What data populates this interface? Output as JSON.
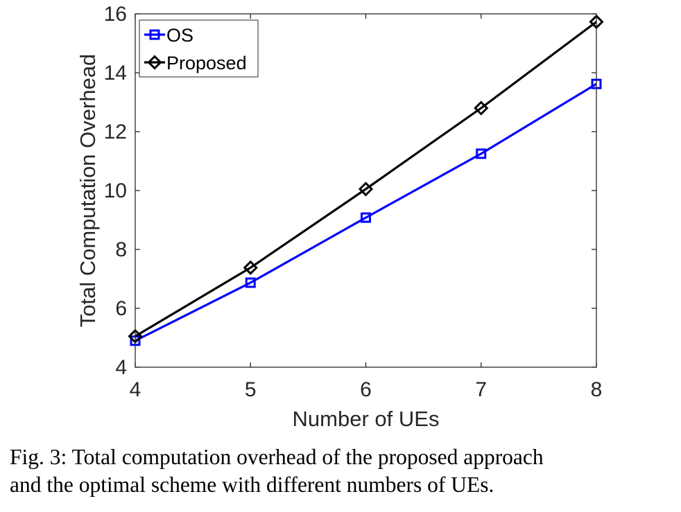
{
  "chart_data": {
    "type": "line",
    "title": "",
    "xlabel": "Number of UEs",
    "ylabel": "Total Computation Overhead",
    "x": [
      4,
      5,
      6,
      7,
      8
    ],
    "xlim": [
      4,
      8
    ],
    "ylim": [
      4,
      16
    ],
    "xticks": [
      4,
      5,
      6,
      7,
      8
    ],
    "yticks": [
      4,
      6,
      8,
      10,
      12,
      14,
      16
    ],
    "grid": false,
    "legend": "top-left",
    "series": [
      {
        "name": "OS",
        "values": [
          4.9,
          6.87,
          9.08,
          11.25,
          13.62
        ],
        "color": "#0000ff",
        "marker": "square"
      },
      {
        "name": "Proposed",
        "values": [
          5.05,
          7.38,
          10.05,
          12.8,
          15.73
        ],
        "color": "#000000",
        "marker": "diamond"
      }
    ]
  },
  "caption": {
    "line1": "Fig. 3: Total computation overhead of the proposed approach",
    "line2": "and the optimal scheme with different numbers of UEs."
  }
}
